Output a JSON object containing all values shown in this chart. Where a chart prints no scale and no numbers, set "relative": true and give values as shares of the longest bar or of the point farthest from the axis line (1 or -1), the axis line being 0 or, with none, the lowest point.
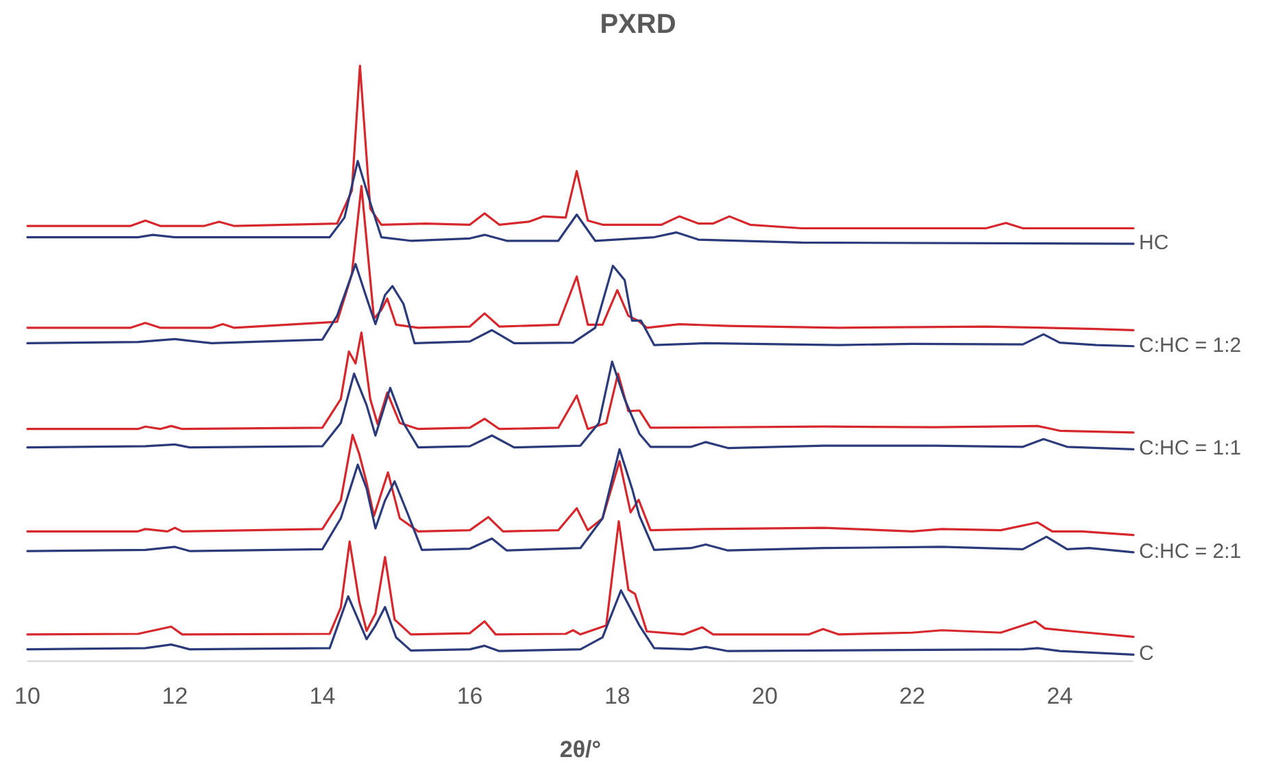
{
  "chart_data": {
    "type": "line",
    "title": "PXRD",
    "xlabel": "2θ/°",
    "relative": true,
    "xlim": [
      10,
      25
    ],
    "xticks": [
      10,
      12,
      14,
      16,
      18,
      20,
      22,
      24
    ],
    "grid": false,
    "marker": "none",
    "line_style": "solid",
    "series": [
      {
        "color": "#d6282c",
        "x": [
          10,
          11.4,
          11.6,
          11.8,
          12.4,
          12.6,
          12.8,
          14.2,
          14.4,
          14.51,
          14.65,
          14.8,
          15.4,
          16.0,
          16.2,
          16.4,
          16.8,
          17.0,
          17.3,
          17.45,
          17.6,
          17.8,
          18.6,
          18.84,
          19.1,
          19.3,
          19.52,
          19.8,
          20.5,
          23.0,
          23.27,
          23.5,
          25
        ],
        "values": [
          0.731,
          0.731,
          0.74,
          0.731,
          0.731,
          0.738,
          0.731,
          0.735,
          0.79,
          1.0,
          0.76,
          0.733,
          0.735,
          0.733,
          0.752,
          0.733,
          0.738,
          0.747,
          0.745,
          0.823,
          0.74,
          0.733,
          0.733,
          0.747,
          0.735,
          0.735,
          0.747,
          0.733,
          0.727,
          0.727,
          0.736,
          0.727,
          0.727
        ]
      },
      {
        "name": "HC",
        "color": "#2b3a7a",
        "x": [
          10,
          11.5,
          11.7,
          12,
          14.1,
          14.3,
          14.48,
          14.65,
          14.8,
          15.2,
          16.0,
          16.2,
          16.5,
          17.2,
          17.45,
          17.7,
          18.5,
          18.8,
          19.1,
          20.5,
          25
        ],
        "values": [
          0.712,
          0.712,
          0.716,
          0.712,
          0.712,
          0.745,
          0.84,
          0.77,
          0.712,
          0.706,
          0.71,
          0.716,
          0.706,
          0.706,
          0.75,
          0.706,
          0.712,
          0.72,
          0.708,
          0.703,
          0.701
        ]
      },
      {
        "color": "#d6282c",
        "x": [
          10,
          11.4,
          11.6,
          11.8,
          12.5,
          12.65,
          12.8,
          14.2,
          14.4,
          14.53,
          14.7,
          14.8,
          14.88,
          15.0,
          15.3,
          16.0,
          16.2,
          16.4,
          17.2,
          17.45,
          17.6,
          17.8,
          18.0,
          18.15,
          18.28,
          18.4,
          18.84,
          19.5,
          21,
          23,
          24.5,
          25
        ],
        "values": [
          0.56,
          0.56,
          0.568,
          0.56,
          0.56,
          0.566,
          0.56,
          0.57,
          0.65,
          0.798,
          0.575,
          0.59,
          0.609,
          0.565,
          0.56,
          0.562,
          0.584,
          0.562,
          0.565,
          0.646,
          0.565,
          0.565,
          0.623,
          0.58,
          0.572,
          0.56,
          0.566,
          0.563,
          0.56,
          0.562,
          0.558,
          0.556
        ]
      },
      {
        "name": "C:HC = 1:2",
        "color": "#2b3a7a",
        "x": [
          10,
          11.5,
          12.0,
          12.2,
          12.5,
          14.0,
          14.2,
          14.45,
          14.6,
          14.72,
          14.85,
          14.95,
          15.1,
          15.25,
          16.0,
          16.3,
          16.6,
          17.4,
          17.7,
          17.94,
          18.1,
          18.2,
          18.32,
          18.5,
          19.2,
          21.0,
          22,
          23.5,
          23.78,
          24.0,
          24.5,
          25
        ],
        "values": [
          0.534,
          0.536,
          0.541,
          0.538,
          0.534,
          0.54,
          0.58,
          0.667,
          0.61,
          0.566,
          0.615,
          0.63,
          0.6,
          0.534,
          0.537,
          0.556,
          0.534,
          0.535,
          0.56,
          0.664,
          0.64,
          0.572,
          0.572,
          0.531,
          0.534,
          0.531,
          0.533,
          0.532,
          0.549,
          0.535,
          0.531,
          0.529
        ]
      },
      {
        "color": "#d6282c",
        "x": [
          10,
          11.5,
          11.6,
          11.8,
          11.95,
          12.1,
          14.0,
          14.25,
          14.36,
          14.45,
          14.53,
          14.65,
          14.75,
          14.88,
          15.05,
          15.3,
          16.0,
          16.2,
          16.4,
          17.2,
          17.45,
          17.6,
          17.85,
          18.01,
          18.15,
          18.3,
          18.45,
          20.8,
          22.3,
          23.7,
          24.0,
          25
        ],
        "values": [
          0.39,
          0.39,
          0.394,
          0.39,
          0.395,
          0.39,
          0.392,
          0.44,
          0.52,
          0.5,
          0.552,
          0.44,
          0.398,
          0.451,
          0.4,
          0.39,
          0.392,
          0.407,
          0.39,
          0.392,
          0.446,
          0.39,
          0.4,
          0.483,
          0.42,
          0.421,
          0.392,
          0.394,
          0.393,
          0.395,
          0.387,
          0.384
        ]
      },
      {
        "name": "C:HC = 1:1",
        "color": "#2b3a7a",
        "x": [
          10,
          11.6,
          12.0,
          12.2,
          14.0,
          14.25,
          14.43,
          14.6,
          14.72,
          14.92,
          15.1,
          15.3,
          16.0,
          16.3,
          16.6,
          17.5,
          17.75,
          17.93,
          18.1,
          18.3,
          18.45,
          19.0,
          19.2,
          19.5,
          20.8,
          22.3,
          23.5,
          23.78,
          24.1,
          25
        ],
        "values": [
          0.359,
          0.361,
          0.364,
          0.359,
          0.361,
          0.4,
          0.483,
          0.43,
          0.379,
          0.459,
          0.4,
          0.359,
          0.361,
          0.379,
          0.359,
          0.362,
          0.4,
          0.503,
          0.44,
          0.382,
          0.36,
          0.36,
          0.368,
          0.358,
          0.362,
          0.362,
          0.36,
          0.373,
          0.36,
          0.356
        ]
      },
      {
        "color": "#d6282c",
        "x": [
          10,
          11.5,
          11.6,
          11.9,
          12.0,
          12.1,
          14.0,
          14.25,
          14.41,
          14.5,
          14.6,
          14.7,
          14.89,
          15.05,
          15.3,
          16.0,
          16.25,
          16.45,
          17.2,
          17.45,
          17.6,
          17.8,
          18.03,
          18.18,
          18.29,
          18.45,
          19.2,
          20.8,
          22.0,
          22.4,
          23.2,
          23.7,
          23.9,
          24.3,
          25
        ],
        "values": [
          0.218,
          0.218,
          0.222,
          0.218,
          0.224,
          0.218,
          0.222,
          0.27,
          0.38,
          0.348,
          0.3,
          0.244,
          0.317,
          0.24,
          0.218,
          0.22,
          0.242,
          0.218,
          0.22,
          0.257,
          0.22,
          0.24,
          0.336,
          0.25,
          0.271,
          0.22,
          0.222,
          0.224,
          0.218,
          0.222,
          0.22,
          0.233,
          0.218,
          0.218,
          0.212
        ]
      },
      {
        "name": "C:HC = 2:1",
        "color": "#2b3a7a",
        "x": [
          10,
          11.6,
          12.0,
          12.2,
          14.0,
          14.25,
          14.48,
          14.6,
          14.72,
          14.85,
          14.98,
          15.15,
          15.35,
          16.0,
          16.3,
          16.5,
          17.5,
          17.8,
          18.03,
          18.2,
          18.3,
          18.5,
          19.0,
          19.2,
          19.5,
          20.8,
          22.4,
          23.5,
          23.82,
          24.1,
          24.4,
          25
        ],
        "values": [
          0.185,
          0.187,
          0.192,
          0.185,
          0.188,
          0.24,
          0.33,
          0.29,
          0.223,
          0.27,
          0.302,
          0.25,
          0.187,
          0.189,
          0.206,
          0.186,
          0.19,
          0.24,
          0.356,
          0.29,
          0.244,
          0.187,
          0.19,
          0.196,
          0.186,
          0.19,
          0.192,
          0.188,
          0.209,
          0.188,
          0.19,
          0.183
        ]
      },
      {
        "color": "#d6282c",
        "x": [
          10,
          11.5,
          11.95,
          12.1,
          14.1,
          14.25,
          14.37,
          14.5,
          14.6,
          14.72,
          14.85,
          14.98,
          15.2,
          16.0,
          16.2,
          16.35,
          17.3,
          17.4,
          17.5,
          17.85,
          18.02,
          18.15,
          18.24,
          18.4,
          18.9,
          19.15,
          19.3,
          20.6,
          20.79,
          21.0,
          22.0,
          22.4,
          23.2,
          23.67,
          23.8,
          24.2,
          25
        ],
        "values": [
          0.045,
          0.046,
          0.058,
          0.045,
          0.046,
          0.09,
          0.201,
          0.1,
          0.051,
          0.08,
          0.175,
          0.07,
          0.045,
          0.047,
          0.067,
          0.045,
          0.046,
          0.052,
          0.045,
          0.06,
          0.235,
          0.12,
          0.113,
          0.05,
          0.045,
          0.057,
          0.045,
          0.045,
          0.054,
          0.045,
          0.048,
          0.052,
          0.048,
          0.067,
          0.055,
          0.05,
          0.041
        ]
      },
      {
        "name": "C",
        "color": "#2b3a7a",
        "x": [
          10,
          11.6,
          11.95,
          12.2,
          14.1,
          14.35,
          14.6,
          14.72,
          14.85,
          15.0,
          15.2,
          16.0,
          16.2,
          16.4,
          17.5,
          17.8,
          18.05,
          18.3,
          18.5,
          19.0,
          19.2,
          19.5,
          23.5,
          23.7,
          24.0,
          25
        ],
        "values": [
          0.02,
          0.022,
          0.028,
          0.02,
          0.022,
          0.109,
          0.037,
          0.06,
          0.091,
          0.04,
          0.018,
          0.02,
          0.026,
          0.017,
          0.02,
          0.04,
          0.119,
          0.06,
          0.022,
          0.02,
          0.024,
          0.017,
          0.02,
          0.022,
          0.017,
          0.011
        ]
      }
    ]
  }
}
